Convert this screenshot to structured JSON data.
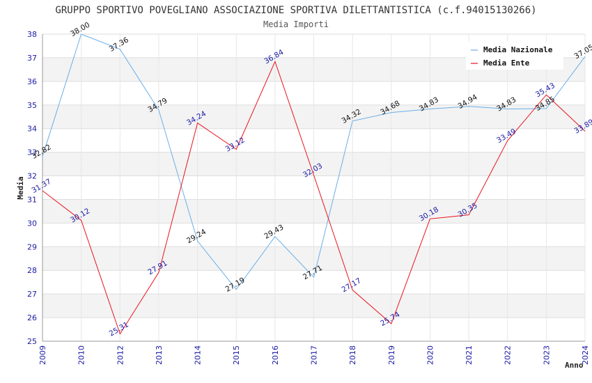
{
  "chart_data": {
    "type": "line",
    "title": "GRUPPO SPORTIVO POVEGLIANO ASSOCIAZIONE SPORTIVA DILETTANTISTICA (c.f.94015130266)",
    "subtitle": "Media Importi",
    "xlabel": "Anno",
    "ylabel": "Media",
    "categories": [
      "2009",
      "2010",
      "2012",
      "2013",
      "2014",
      "2015",
      "2016",
      "2017",
      "2018",
      "2019",
      "2020",
      "2021",
      "2022",
      "2023",
      "2024"
    ],
    "ylim": [
      25,
      38
    ],
    "yticks": [
      "25",
      "26",
      "27",
      "28",
      "29",
      "30",
      "31",
      "32",
      "33",
      "34",
      "35",
      "36",
      "37",
      "38"
    ],
    "grid": true,
    "legend_position": "top-right",
    "series": [
      {
        "name": "Media Nazionale",
        "color": "#6aaee8",
        "values": [
          32.82,
          38.0,
          37.36,
          34.79,
          29.24,
          27.19,
          29.43,
          27.71,
          34.32,
          34.68,
          34.83,
          34.94,
          34.83,
          34.85,
          37.05
        ],
        "labels": [
          "32.82",
          "38.00",
          "37.36",
          "34.79",
          "29.24",
          "27.19",
          "29.43",
          "27.71",
          "34.32",
          "34.68",
          "34.83",
          "34.94",
          "34.83",
          "34.85",
          "37.05"
        ]
      },
      {
        "name": "Media Ente",
        "color": "#e8141e",
        "values": [
          31.37,
          30.12,
          25.31,
          27.91,
          34.24,
          33.12,
          36.84,
          32.03,
          27.17,
          25.74,
          30.18,
          30.35,
          33.49,
          35.43,
          33.89
        ],
        "labels": [
          "31.37",
          "30.12",
          "25.31",
          "27.91",
          "34.24",
          "33.12",
          "36.84",
          "32.03",
          "27.17",
          "25.74",
          "30.18",
          "30.35",
          "33.49",
          "35.43",
          "33.89"
        ]
      }
    ]
  }
}
